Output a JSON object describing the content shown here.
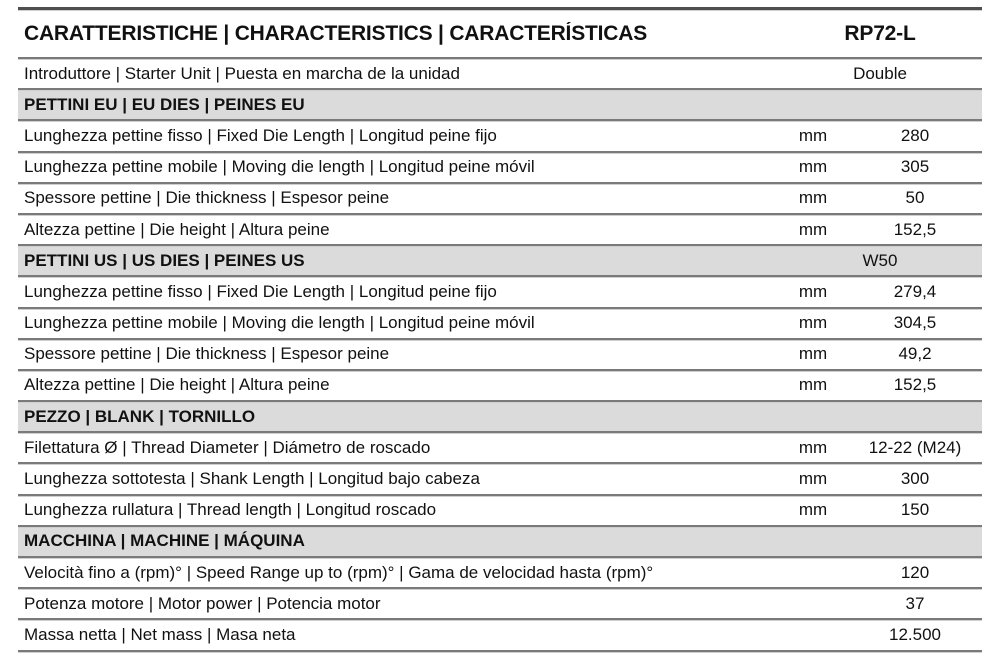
{
  "header": {
    "title": "CARATTERISTICHE | CHARACTERISTICS | CARACTERÍSTICAS",
    "model": "RP72-L"
  },
  "table": {
    "rows": [
      {
        "type": "data",
        "merge": true,
        "label": "Introduttore | Starter Unit | Puesta en marcha de la unidad",
        "unit": "",
        "value": "Double"
      },
      {
        "type": "section",
        "label": "PETTINI EU | EU DIES | PEINES EU",
        "value": ""
      },
      {
        "type": "data",
        "label": "Lunghezza pettine fisso | Fixed Die Length | Longitud peine fijo",
        "unit": "mm",
        "value": "280"
      },
      {
        "type": "data",
        "label": "Lunghezza pettine mobile | Moving die length | Longitud peine móvil",
        "unit": "mm",
        "value": "305"
      },
      {
        "type": "data",
        "label": "Spessore pettine | Die thickness | Espesor peine",
        "unit": "mm",
        "value": "50"
      },
      {
        "type": "data",
        "label": "Altezza pettine | Die height | Altura peine",
        "unit": "mm",
        "value": "152,5"
      },
      {
        "type": "section",
        "label": "PETTINI US | US DIES | PEINES US",
        "value": "W50"
      },
      {
        "type": "data",
        "label": "Lunghezza pettine fisso | Fixed Die Length | Longitud peine fijo",
        "unit": "mm",
        "value": "279,4"
      },
      {
        "type": "data",
        "label": "Lunghezza pettine mobile | Moving die length | Longitud peine móvil",
        "unit": "mm",
        "value": "304,5"
      },
      {
        "type": "data",
        "label": "Spessore pettine | Die thickness | Espesor peine",
        "unit": "mm",
        "value": "49,2"
      },
      {
        "type": "data",
        "label": "Altezza pettine | Die height | Altura peine",
        "unit": "mm",
        "value": "152,5"
      },
      {
        "type": "section",
        "label": "PEZZO | BLANK | TORNILLO",
        "value": ""
      },
      {
        "type": "data",
        "label": "Filettatura Ø | Thread Diameter | Diámetro de roscado",
        "unit": "mm",
        "value": "12-22 (M24)"
      },
      {
        "type": "data",
        "label": "Lunghezza sottotesta | Shank Length | Longitud bajo cabeza",
        "unit": "mm",
        "value": "300"
      },
      {
        "type": "data",
        "label": "Lunghezza rullatura | Thread length | Longitud roscado",
        "unit": "mm",
        "value": "150"
      },
      {
        "type": "section",
        "label": "MACCHINA | MACHINE | MÁQUINA",
        "value": ""
      },
      {
        "type": "data",
        "label": "Velocità fino a (rpm)° | Speed Range up to (rpm)° | Gama de velocidad hasta (rpm)°",
        "unit": "",
        "value": "120"
      },
      {
        "type": "data",
        "label": "Potenza motore | Motor power | Potencia motor",
        "unit": "",
        "value": "37"
      },
      {
        "type": "data",
        "label": "Massa netta | Net mass | Masa neta",
        "unit": "",
        "value": "12.500"
      }
    ]
  },
  "colors": {
    "section_band_bg": "#dbdbdb",
    "separator": "#7a7a7a",
    "separator_highlight": "#cfcfcf",
    "top_border": "#4f4f4f",
    "text": "#111111"
  }
}
